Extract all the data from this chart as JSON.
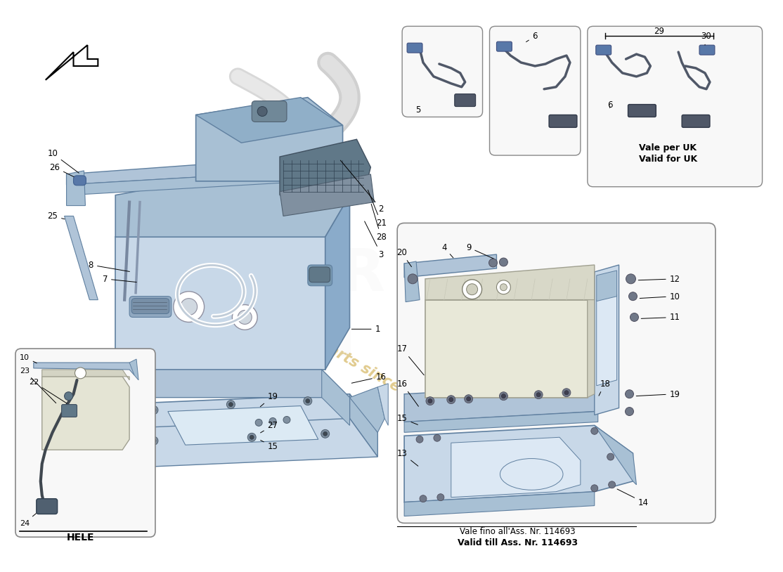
{
  "bg_color": "#ffffff",
  "light_blue": "#c8d8e8",
  "mid_blue": "#a8c0d4",
  "dark_blue": "#8aabca",
  "steel_blue": "#b0c4d8",
  "light_gray": "#d8d8d8",
  "wire_color": "#606070",
  "battery_color": "#e8e8d8",
  "battery_edge": "#a0a090",
  "connector_color": "#5878a8",
  "box_edge": "#6080a0",
  "dark_comp": "#607888",
  "watermark_text": "a part for parts since 1965",
  "watermark_color": "#c8a030",
  "bottom_note1": "Vale fino all'Ass. Nr. 114693",
  "bottom_note2": "Valid till Ass. Nr. 114693",
  "uk_note1": "Vale per UK",
  "uk_note2": "Valid for UK",
  "hele_label": "HELE"
}
